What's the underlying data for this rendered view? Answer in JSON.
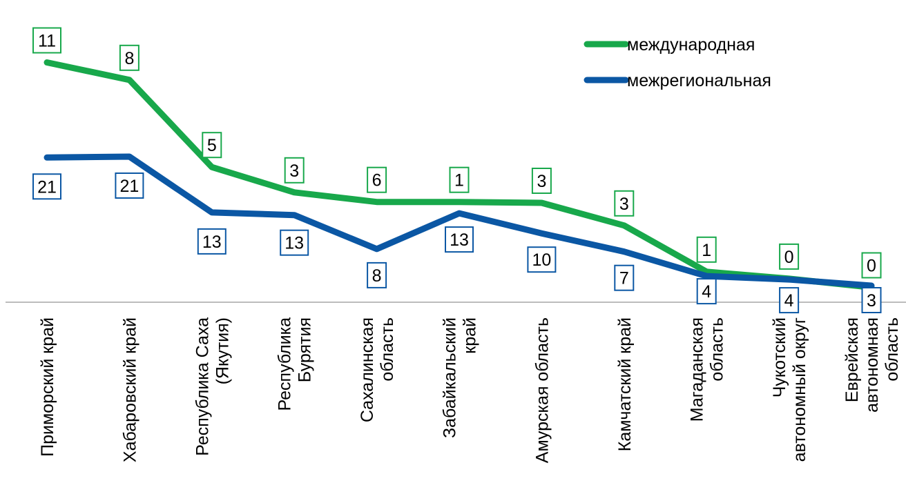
{
  "chart_data": {
    "type": "line",
    "title": "",
    "xlabel": "",
    "ylabel": "",
    "categories": [
      [
        "Приморский край"
      ],
      [
        "Хабаровский край"
      ],
      [
        "Республика Саха",
        "(Якутия)"
      ],
      [
        "Республика",
        "Бурятия"
      ],
      [
        "Сахалинская",
        "область"
      ],
      [
        "Забайкальский",
        "край"
      ],
      [
        "Амурская область"
      ],
      [
        "Камчатский край"
      ],
      [
        "Магаданская",
        "область"
      ],
      [
        "Чукотский",
        "автономный округ"
      ],
      [
        "Еврейская",
        "автономная",
        "область"
      ]
    ],
    "series": [
      {
        "name": "международная",
        "color": "#18A84B",
        "values": [
          11,
          8,
          5,
          3,
          6,
          1,
          3,
          3,
          1,
          0,
          0
        ],
        "line_y": [
          27.5,
          25.5,
          15.5,
          12.6,
          11.5,
          11.5,
          11.4,
          8.8,
          3.5,
          2.7,
          1.7
        ]
      },
      {
        "name": "межрегиональная",
        "color": "#0B57A4",
        "values": [
          21,
          21,
          13,
          13,
          8,
          13,
          10,
          7,
          4,
          4,
          3
        ],
        "line_y": [
          16.6,
          16.7,
          10.3,
          10.0,
          6.1,
          10.2,
          7.9,
          5.8,
          3.0,
          2.6,
          1.9
        ]
      }
    ],
    "ylim": [
      0,
      31.5
    ],
    "grid": false,
    "legend_position": "top-right"
  }
}
